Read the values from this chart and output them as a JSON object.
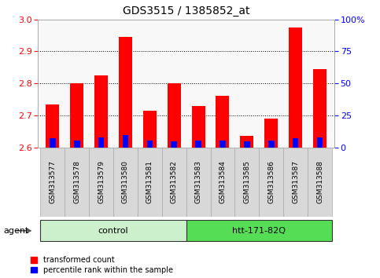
{
  "title": "GDS3515 / 1385852_at",
  "samples": [
    "GSM313577",
    "GSM313578",
    "GSM313579",
    "GSM313580",
    "GSM313581",
    "GSM313582",
    "GSM313583",
    "GSM313584",
    "GSM313585",
    "GSM313586",
    "GSM313587",
    "GSM313588"
  ],
  "red_values": [
    2.735,
    2.8,
    2.825,
    2.945,
    2.715,
    2.8,
    2.73,
    2.76,
    2.635,
    2.69,
    2.975,
    2.845
  ],
  "blue_heights": [
    0.028,
    0.022,
    0.03,
    0.038,
    0.022,
    0.018,
    0.022,
    0.022,
    0.018,
    0.022,
    0.028,
    0.032
  ],
  "ymin": 2.6,
  "ymax": 3.0,
  "yticks": [
    2.6,
    2.7,
    2.8,
    2.9,
    3.0
  ],
  "right_yticks": [
    0,
    25,
    50,
    75,
    100
  ],
  "groups": [
    {
      "label": "control",
      "start": 0,
      "end": 5,
      "color": "#ccf0cc"
    },
    {
      "label": "htt-171-82Q",
      "start": 6,
      "end": 11,
      "color": "#55dd55"
    }
  ],
  "agent_label": "agent",
  "legend_items": [
    {
      "label": "transformed count",
      "color": "red"
    },
    {
      "label": "percentile rank within the sample",
      "color": "blue"
    }
  ],
  "bar_width": 0.55,
  "background_color": "#ffffff",
  "title_fontsize": 10,
  "tick_fontsize": 7,
  "sample_fontsize": 6.5
}
